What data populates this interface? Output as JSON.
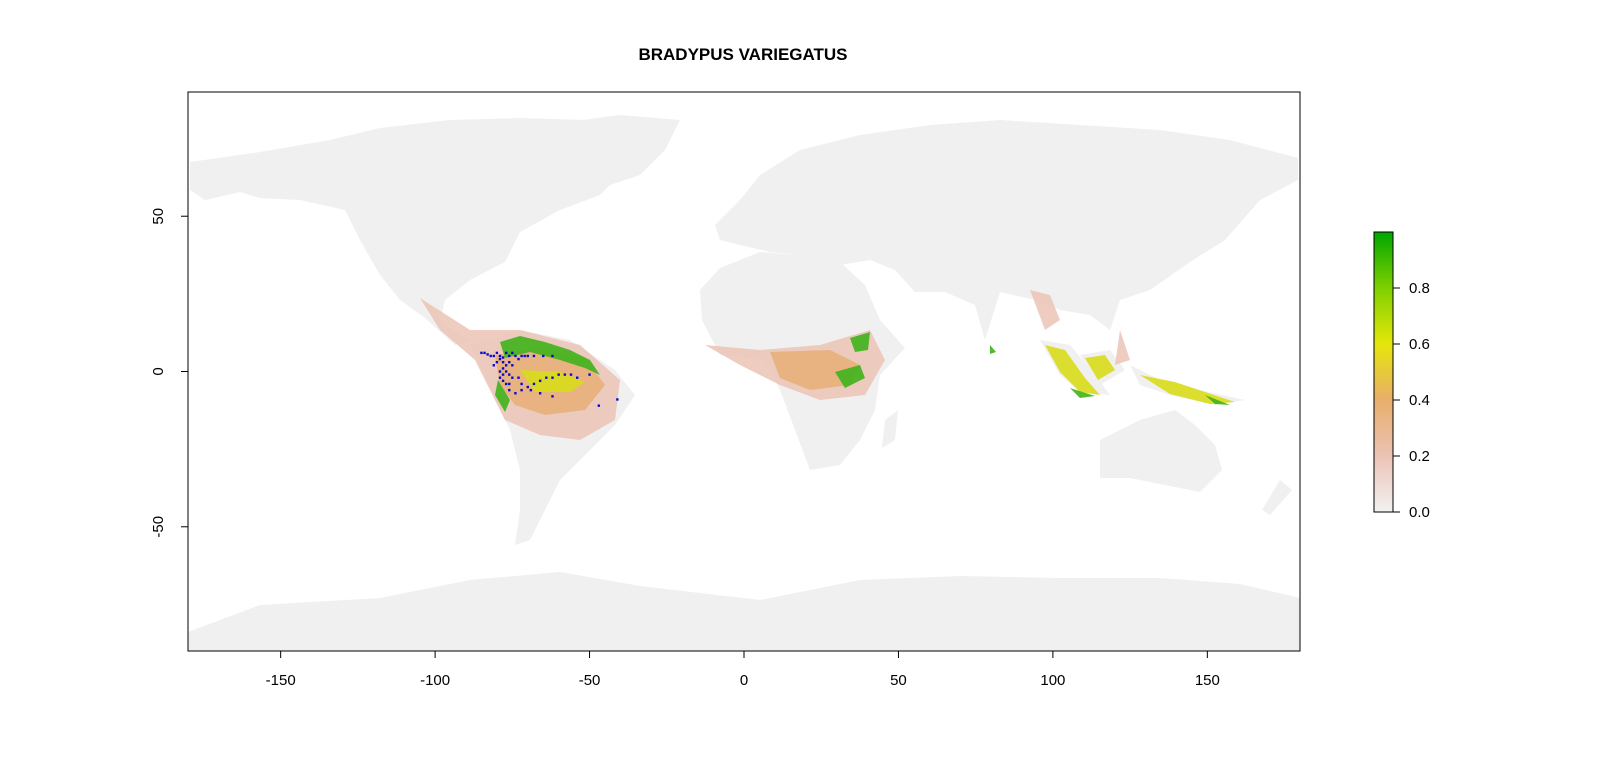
{
  "title": "BRADYPUS VARIEGATUS",
  "colors": {
    "low": "#f2f2f2",
    "pink": "#ebc3b5",
    "orange": "#e8ae6b",
    "yellow": "#e6e60a",
    "green": "#00a600",
    "occurrence": "#0a0acc"
  },
  "map": {
    "xlim": [
      -180,
      180
    ],
    "ylim": [
      -90,
      90
    ],
    "x_ticks": [
      -150,
      -100,
      -50,
      0,
      50,
      100,
      150
    ],
    "y_ticks": [
      -50,
      0,
      50
    ]
  },
  "legend": {
    "range": [
      0,
      1
    ],
    "ticks": [
      "0.0",
      "0.2",
      "0.4",
      "0.6",
      "0.8"
    ],
    "tick_values": [
      0,
      0.2,
      0.4,
      0.6,
      0.8
    ]
  },
  "occurrences": [
    [
      -85,
      6
    ],
    [
      -84,
      6
    ],
    [
      -83,
      5.5
    ],
    [
      -82,
      5
    ],
    [
      -81,
      5
    ],
    [
      -80,
      6
    ],
    [
      -79,
      5
    ],
    [
      -78,
      4.5
    ],
    [
      -77,
      6
    ],
    [
      -76,
      5
    ],
    [
      -75,
      6
    ],
    [
      -74,
      5
    ],
    [
      -73,
      4
    ],
    [
      -72,
      5
    ],
    [
      -71,
      5
    ],
    [
      -70,
      5
    ],
    [
      -68,
      5
    ],
    [
      -65,
      5
    ],
    [
      -62,
      5
    ],
    [
      -78,
      3
    ],
    [
      -77,
      2
    ],
    [
      -76,
      3
    ],
    [
      -75,
      2
    ],
    [
      -78,
      1
    ],
    [
      -77,
      0
    ],
    [
      -79,
      0
    ],
    [
      -78,
      -1
    ],
    [
      -76,
      -1
    ],
    [
      -79,
      -2
    ],
    [
      -78,
      -3
    ],
    [
      -77,
      -4
    ],
    [
      -76,
      -4
    ],
    [
      -75,
      -2
    ],
    [
      -73,
      -2
    ],
    [
      -72,
      -4
    ],
    [
      -70,
      -5
    ],
    [
      -68,
      -4
    ],
    [
      -66,
      -3
    ],
    [
      -64,
      -2
    ],
    [
      -62,
      -2
    ],
    [
      -60,
      -1
    ],
    [
      -58,
      -1
    ],
    [
      -56,
      -1
    ],
    [
      -54,
      -2
    ],
    [
      -50,
      -1
    ],
    [
      -76,
      -6
    ],
    [
      -74,
      -7
    ],
    [
      -72,
      -6
    ],
    [
      -69,
      -6
    ],
    [
      -66,
      -7
    ],
    [
      -62,
      -8
    ],
    [
      -47,
      -11
    ],
    [
      -41,
      -9
    ],
    [
      -79,
      4
    ],
    [
      -80,
      3
    ],
    [
      -81,
      2
    ]
  ]
}
